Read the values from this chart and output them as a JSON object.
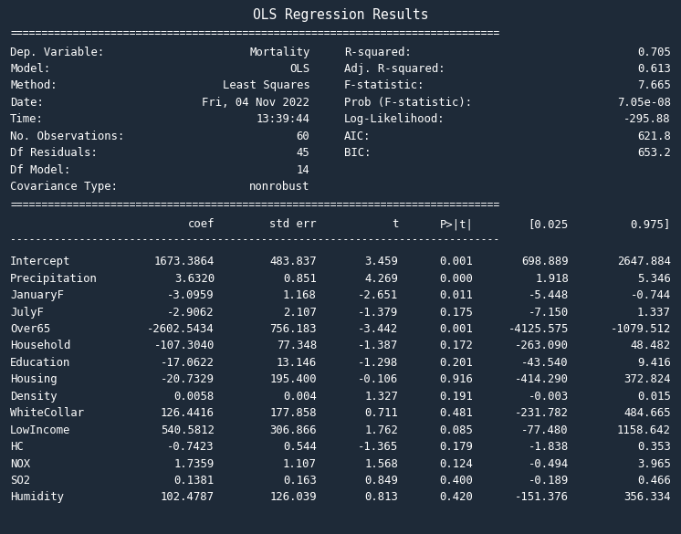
{
  "title": "OLS Regression Results",
  "bg_color": "#1e2a38",
  "text_color": "#ffffff",
  "font_family": "monospace",
  "title_fontsize": 10.5,
  "body_fontsize": 8.8,
  "left_info": [
    [
      "Dep. Variable:",
      "Mortality"
    ],
    [
      "Model:",
      "OLS"
    ],
    [
      "Method:",
      "Least Squares"
    ],
    [
      "Date:",
      "Fri, 04 Nov 2022"
    ],
    [
      "Time:",
      "13:39:44"
    ],
    [
      "No. Observations:",
      "60"
    ],
    [
      "Df Residuals:",
      "45"
    ],
    [
      "Df Model:",
      "14"
    ],
    [
      "Covariance Type:",
      "nonrobust"
    ]
  ],
  "right_info": [
    [
      "R-squared:",
      "0.705"
    ],
    [
      "Adj. R-squared:",
      "0.613"
    ],
    [
      "F-statistic:",
      "7.665"
    ],
    [
      "Prob (F-statistic):",
      "7.05e-08"
    ],
    [
      "Log-Likelihood:",
      "-295.88"
    ],
    [
      "AIC:",
      "621.8"
    ],
    [
      "BIC:",
      "653.2"
    ]
  ],
  "col_headers": [
    "",
    "coef",
    "std err",
    "t",
    "P>|t|",
    "[0.025",
    "0.975]"
  ],
  "rows": [
    [
      "Intercept",
      "1673.3864",
      "483.837",
      "3.459",
      "0.001",
      "698.889",
      "2647.884"
    ],
    [
      "Precipitation",
      "3.6320",
      "0.851",
      "4.269",
      "0.000",
      "1.918",
      "5.346"
    ],
    [
      "JanuaryF",
      "-3.0959",
      "1.168",
      "-2.651",
      "0.011",
      "-5.448",
      "-0.744"
    ],
    [
      "JulyF",
      "-2.9062",
      "2.107",
      "-1.379",
      "0.175",
      "-7.150",
      "1.337"
    ],
    [
      "Over65",
      "-2602.5434",
      "756.183",
      "-3.442",
      "0.001",
      "-4125.575",
      "-1079.512"
    ],
    [
      "Household",
      "-107.3040",
      "77.348",
      "-1.387",
      "0.172",
      "-263.090",
      "48.482"
    ],
    [
      "Education",
      "-17.0622",
      "13.146",
      "-1.298",
      "0.201",
      "-43.540",
      "9.416"
    ],
    [
      "Housing",
      "-20.7329",
      "195.400",
      "-0.106",
      "0.916",
      "-414.290",
      "372.824"
    ],
    [
      "Density",
      "0.0058",
      "0.004",
      "1.327",
      "0.191",
      "-0.003",
      "0.015"
    ],
    [
      "WhiteCollar",
      "126.4416",
      "177.858",
      "0.711",
      "0.481",
      "-231.782",
      "484.665"
    ],
    [
      "LowIncome",
      "540.5812",
      "306.866",
      "1.762",
      "0.085",
      "-77.480",
      "1158.642"
    ],
    [
      "HC",
      "-0.7423",
      "0.544",
      "-1.365",
      "0.179",
      "-1.838",
      "0.353"
    ],
    [
      "NOX",
      "1.7359",
      "1.107",
      "1.568",
      "0.124",
      "-0.494",
      "3.965"
    ],
    [
      "SO2",
      "0.1381",
      "0.163",
      "0.849",
      "0.400",
      "-0.189",
      "0.466"
    ],
    [
      "Humidity",
      "102.4787",
      "126.039",
      "0.813",
      "0.420",
      "-151.376",
      "356.334"
    ]
  ],
  "eq_line": "==============================================================================",
  "dash_line": "------------------------------------------------------------------------------"
}
